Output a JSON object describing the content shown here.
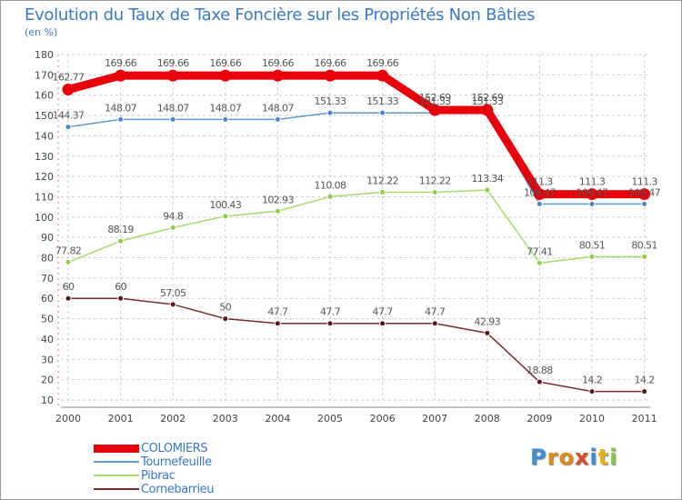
{
  "title": "Evolution du Taux de Taxe Foncière sur les Propriétés Non Bâties",
  "unit": "(en %)",
  "logo": {
    "letters": [
      "P",
      "r",
      "o",
      "x",
      "i",
      "t",
      "i"
    ],
    "colors": [
      "#3a8fd6",
      "#e08a1c",
      "#e08a1c",
      "#d94b2b",
      "#3a8fd6",
      "#e0b21c",
      "#8bc34a"
    ]
  },
  "chart_data": {
    "type": "line",
    "title": "Evolution du Taux de Taxe Foncière sur les Propriétés Non Bâties",
    "ylabel": "(en %)",
    "categories": [
      "2000",
      "2001",
      "2002",
      "2003",
      "2004",
      "2005",
      "2006",
      "2007",
      "2008",
      "2009",
      "2010",
      "2011"
    ],
    "ylim": [
      10,
      180
    ],
    "yticks": [
      10,
      20,
      30,
      40,
      50,
      60,
      70,
      80,
      90,
      100,
      110,
      120,
      130,
      140,
      150,
      160,
      170,
      180
    ],
    "grid": true,
    "legend": "bottom-left",
    "series": [
      {
        "name": "COLOMIERS",
        "color": "#e8000b",
        "marker": "#e8000b",
        "values": [
          162.77,
          169.66,
          169.66,
          169.66,
          169.66,
          169.66,
          169.66,
          152.69,
          152.69,
          111.3,
          111.3,
          111.3
        ],
        "labels": [
          "162.77",
          "169.66",
          "169.66",
          "169.66",
          "169.66",
          "169.66",
          "169.66",
          "152.69",
          "152.69",
          "111.3",
          "111.3",
          "111.3"
        ]
      },
      {
        "name": "Tournefeuille",
        "color": "#5e9bd1",
        "marker": "#4a86c8",
        "values": [
          144.37,
          148.07,
          148.07,
          148.07,
          148.07,
          151.33,
          151.33,
          151.33,
          151.33,
          106.47,
          106.47,
          106.47
        ],
        "labels": [
          "144.37",
          "148.07",
          "148.07",
          "148.07",
          "148.07",
          "151.33",
          "151.33",
          "151.33",
          "151.33",
          "106.47",
          "106.47",
          "106.47"
        ]
      },
      {
        "name": "Pibrac",
        "color": "#a3dd6a",
        "marker": "#8ccf44",
        "values": [
          77.82,
          88.19,
          94.8,
          100.43,
          102.93,
          110.08,
          112.22,
          112.22,
          113.34,
          77.41,
          80.51,
          80.51
        ],
        "labels": [
          "77.82",
          "88.19",
          "94.8",
          "100.43",
          "102.93",
          "110.08",
          "112.22",
          "112.22",
          "113.34",
          "77.41",
          "80.51",
          "80.51"
        ]
      },
      {
        "name": "Cornebarrieu",
        "color": "#7a2a2a",
        "marker": "#5a1414",
        "values": [
          60,
          60,
          57.05,
          50,
          47.7,
          47.7,
          47.7,
          47.7,
          42.93,
          18.88,
          14.2,
          14.2
        ],
        "labels": [
          "60",
          "60",
          "57.05",
          "50",
          "47.7",
          "47.7",
          "47.7",
          "47.7",
          "42.93",
          "18.88",
          "14.2",
          "14.2"
        ]
      }
    ]
  }
}
